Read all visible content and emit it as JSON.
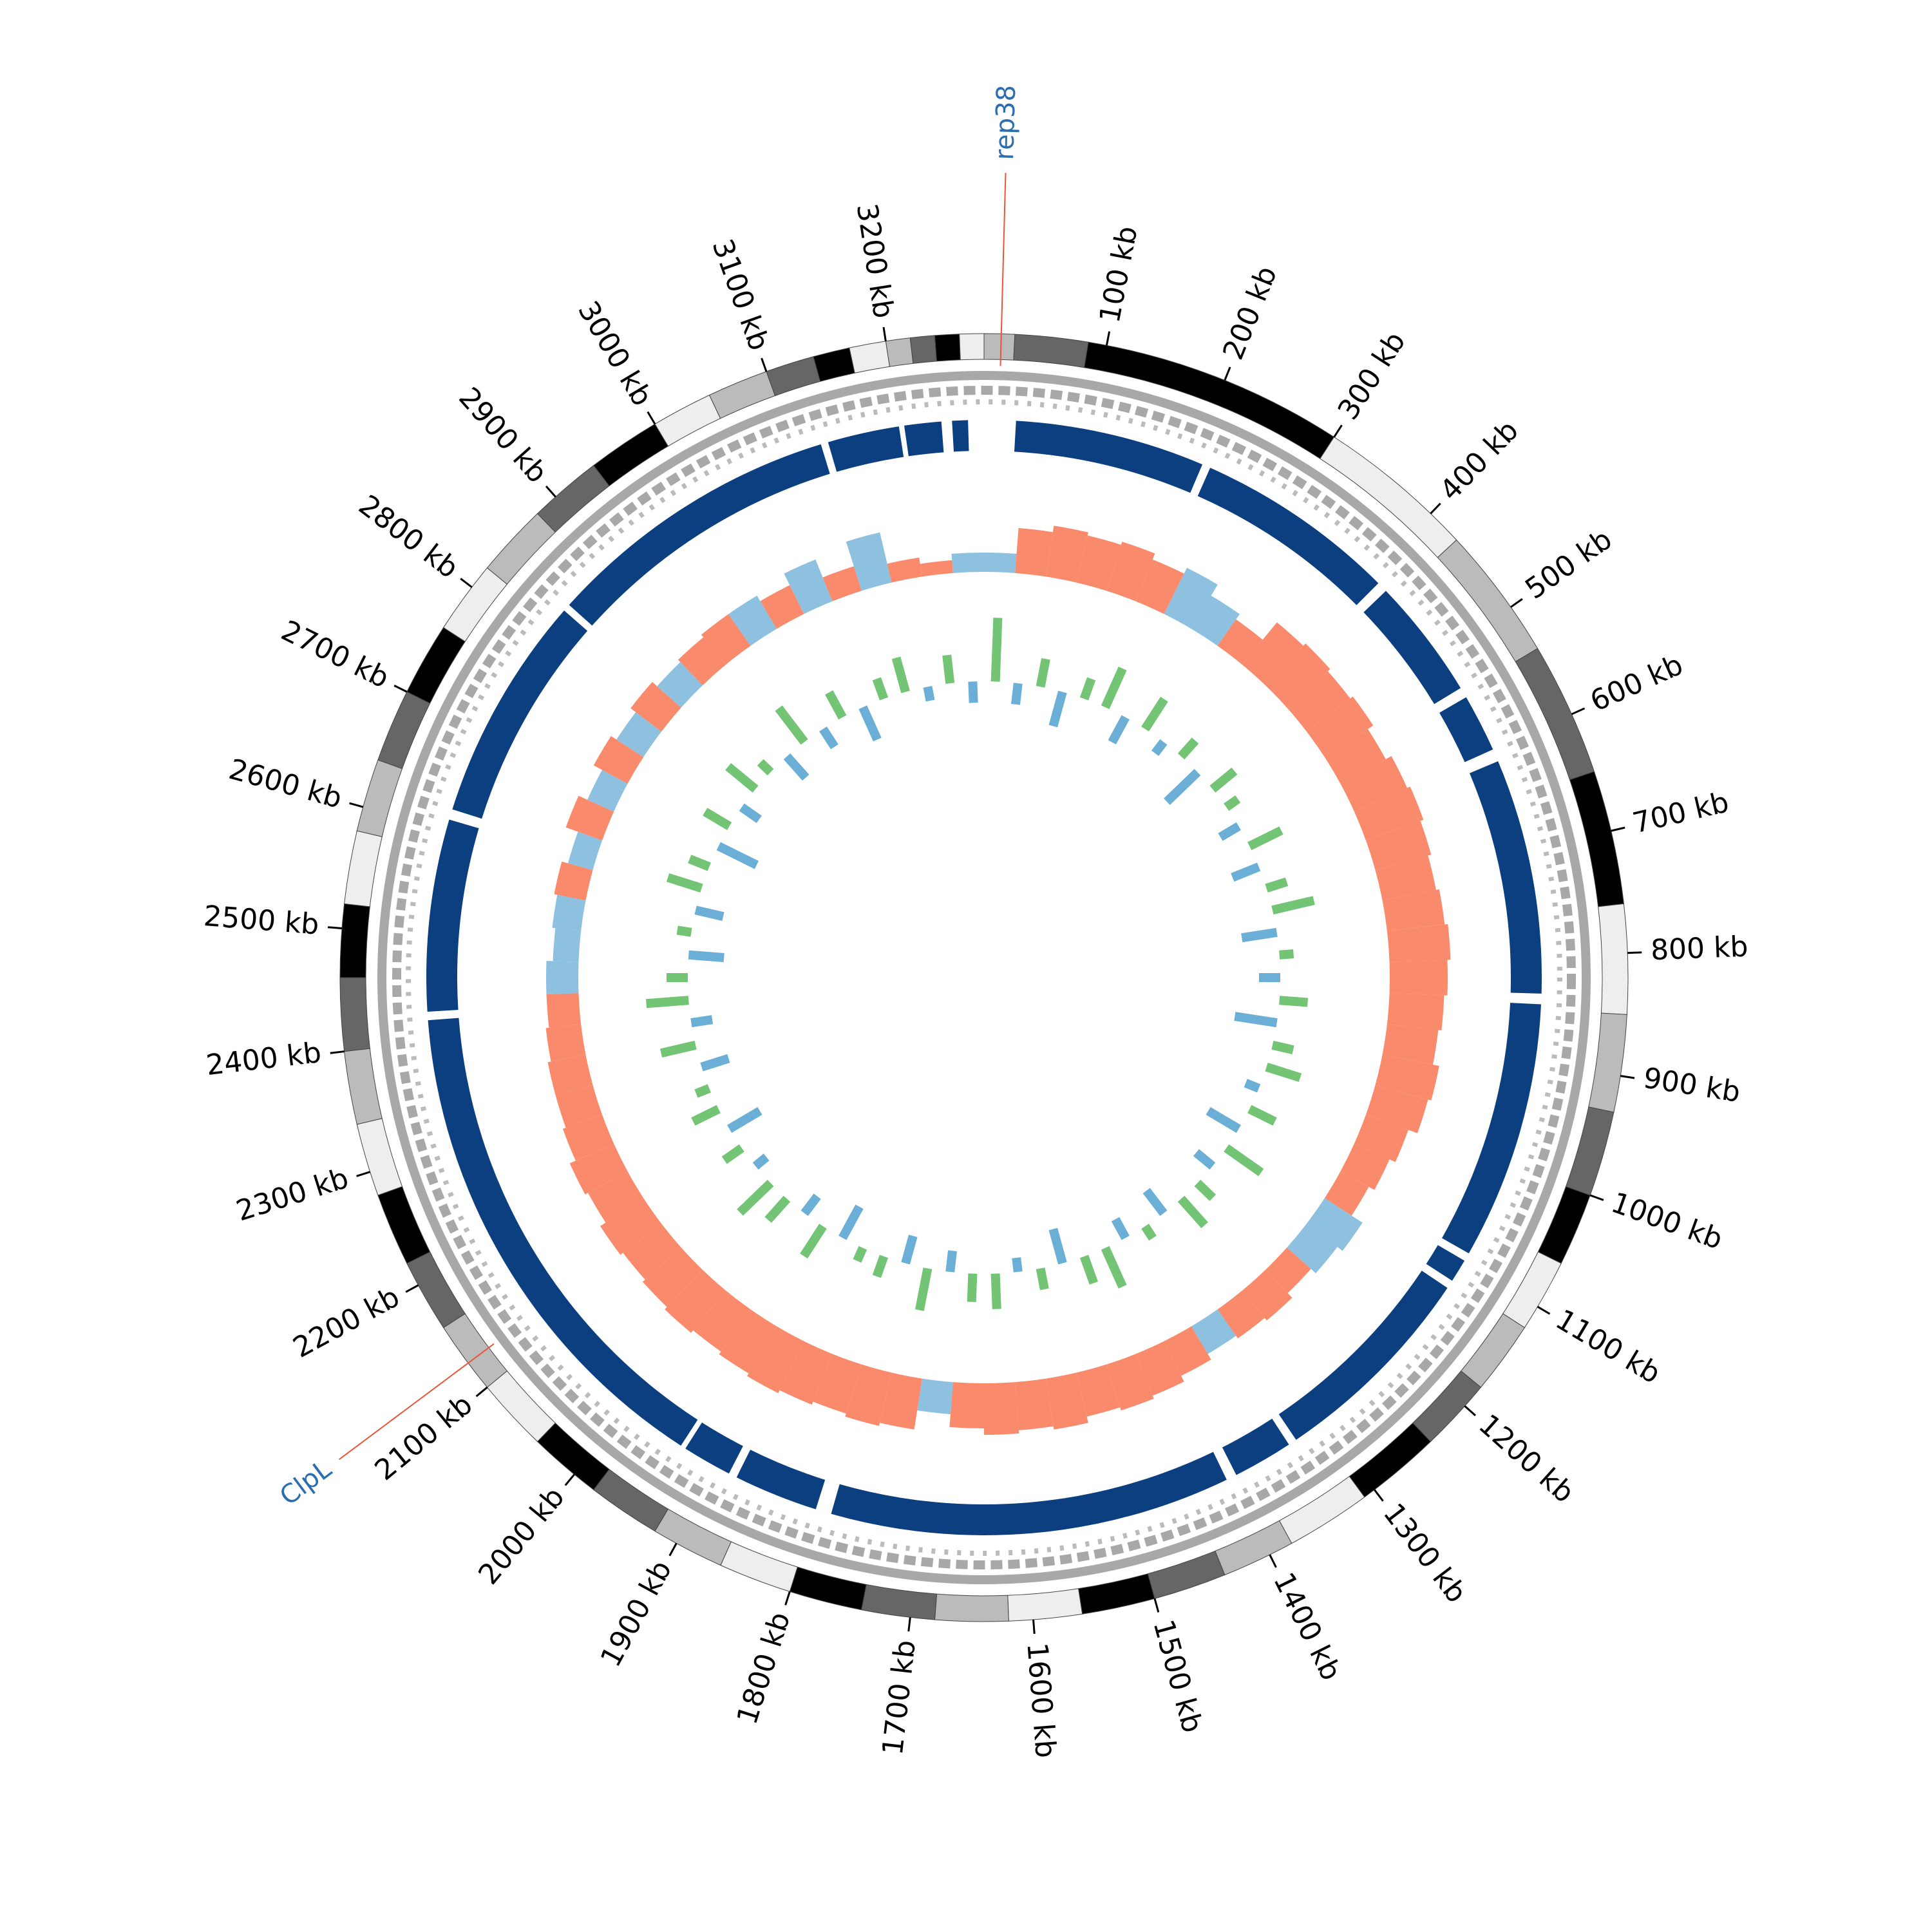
{
  "chart_data": {
    "type": "circos",
    "xlim": [
      0,
      3280
    ],
    "xticks": [
      {
        "value": 100,
        "label": "100 kb"
      },
      {
        "value": 200,
        "label": "200 kb"
      },
      {
        "value": 300,
        "label": "300 kb"
      },
      {
        "value": 400,
        "label": "400 kb"
      },
      {
        "value": 500,
        "label": "500 kb"
      },
      {
        "value": 600,
        "label": "600 kb"
      },
      {
        "value": 700,
        "label": "700 kb"
      },
      {
        "value": 800,
        "label": "800 kb"
      },
      {
        "value": 900,
        "label": "900 kb"
      },
      {
        "value": 1000,
        "label": "1000 kb"
      },
      {
        "value": 1100,
        "label": "1100 kb"
      },
      {
        "value": 1200,
        "label": "1200 kb"
      },
      {
        "value": 1300,
        "label": "1300 kb"
      },
      {
        "value": 1400,
        "label": "1400 kb"
      },
      {
        "value": 1500,
        "label": "1500 kb"
      },
      {
        "value": 1600,
        "label": "1600 kb"
      },
      {
        "value": 1700,
        "label": "1700 kb"
      },
      {
        "value": 1800,
        "label": "1800 kb"
      },
      {
        "value": 1900,
        "label": "1900 kb"
      },
      {
        "value": 2000,
        "label": "2000 kb"
      },
      {
        "value": 2100,
        "label": "2100 kb"
      },
      {
        "value": 2200,
        "label": "2200 kb"
      },
      {
        "value": 2300,
        "label": "2300 kb"
      },
      {
        "value": 2400,
        "label": "2400 kb"
      },
      {
        "value": 2500,
        "label": "2500 kb"
      },
      {
        "value": 2600,
        "label": "2600 kb"
      },
      {
        "value": 2700,
        "label": "2700 kb"
      },
      {
        "value": 2800,
        "label": "2800 kb"
      },
      {
        "value": 2900,
        "label": "2900 kb"
      },
      {
        "value": 3000,
        "label": "3000 kb"
      },
      {
        "value": 3100,
        "label": "3100 kb"
      },
      {
        "value": 3200,
        "label": "3200 kb"
      }
    ],
    "annotations": [
      {
        "label": "rep38",
        "position": 14,
        "color": "#2a6db0",
        "line_color": "#e8553a"
      },
      {
        "label": "ClpL",
        "position": 2125,
        "color": "#2a6db0",
        "line_color": "#e8553a"
      }
    ],
    "band_edges": [
      0,
      25,
      85,
      300,
      430,
      540,
      650,
      760,
      850,
      930,
      1000,
      1060,
      1120,
      1180,
      1240,
      1310,
      1380,
      1440,
      1500,
      1560,
      1620,
      1680,
      1740,
      1800,
      1860,
      1920,
      1980,
      2040,
      2100,
      2160,
      2220,
      2280,
      2340,
      2400,
      2460,
      2520,
      2580,
      2640,
      2700,
      2760,
      2820,
      2880,
      2940,
      3000,
      3050,
      3100,
      3140,
      3170,
      3200,
      3220,
      3240,
      3260,
      3280
    ],
    "band_colors": [
      "#bbbbbb",
      "#666666",
      "#000000",
      "#eeeeee"
    ],
    "blocks": [
      [
        30,
        210
      ],
      [
        218,
        410
      ],
      [
        420,
        535
      ],
      [
        545,
        600
      ],
      [
        612,
        835
      ],
      [
        845,
        1090
      ],
      [
        1098,
        1120
      ],
      [
        1128,
        1330
      ],
      [
        1338,
        1395
      ],
      [
        1405,
        1785
      ],
      [
        1800,
        1880
      ],
      [
        1888,
        1935
      ],
      [
        1940,
        2420
      ],
      [
        2428,
        2610
      ],
      [
        2620,
        2835
      ],
      [
        2842,
        3125
      ],
      [
        3132,
        3200
      ],
      [
        3205,
        3240
      ],
      [
        3250,
        3265
      ]
    ],
    "block_color": "#0b3f80",
    "skew": {
      "bin_size": 40,
      "ylim": [
        -1,
        1
      ],
      "pos_color": "#f98a6b",
      "neg_color": "#8ec1e0",
      "values": [
        -0.3,
        0.7,
        0.8,
        0.75,
        0.8,
        0.7,
        -0.8,
        -0.6,
        0.5,
        0.85,
        0.9,
        0.85,
        0.9,
        0.8,
        0.9,
        0.95,
        0.9,
        0.85,
        0.9,
        0.95,
        0.9,
        0.85,
        0.8,
        0.9,
        0.85,
        0.7,
        0.6,
        0.5,
        -0.7,
        -0.6,
        0.5,
        0.6,
        0.55,
        -0.5,
        0.6,
        0.7,
        0.75,
        0.7,
        0.8,
        0.75,
        0.8,
        0.7,
        -0.5,
        0.8,
        0.85,
        0.8,
        0.85,
        0.9,
        0.85,
        0.8,
        0.85,
        0.8,
        0.75,
        0.8,
        0.7,
        0.75,
        0.65,
        0.6,
        0.6,
        0.55,
        0.5,
        -0.5,
        -0.4,
        -0.45,
        0.5,
        -0.4,
        0.6,
        -0.45,
        0.6,
        -0.5,
        0.6,
        -0.5,
        0.55,
        0.6,
        -0.6,
        0.5,
        -0.7,
        0.4,
        -0.8,
        0.3,
        0.2,
        -0.3
      ]
    },
    "gc": {
      "bin_size": 40,
      "ylim": [
        -1,
        1
      ],
      "pos_color": "#74c476",
      "neg_color": "#6baed6",
      "values": [
        0.9,
        -0.3,
        0.4,
        -0.5,
        0.3,
        0.6,
        -0.4,
        0.5,
        -0.2,
        0.3,
        -0.6,
        0.4,
        0.2,
        -0.3,
        0.5,
        -0.4,
        0.3,
        0.6,
        -0.5,
        0.2,
        -0.3,
        0.4,
        -0.6,
        0.3,
        0.5,
        -0.2,
        0.4,
        -0.5,
        0.6,
        -0.3,
        0.3,
        0.5,
        -0.4,
        0.2,
        -0.3,
        0.6,
        0.4,
        -0.5,
        0.3,
        -0.2,
        0.5,
        0.4,
        -0.3,
        0.6,
        -0.4,
        0.3,
        0.2,
        -0.5,
        0.5,
        -0.3,
        0.4,
        0.6,
        -0.2,
        0.3,
        -0.5,
        0.4,
        0.2,
        -0.4,
        0.5,
        -0.3,
        0.6,
        0.3,
        -0.5,
        0.2,
        -0.4,
        0.5,
        0.3,
        -0.6,
        0.4,
        -0.3,
        0.5,
        0.2,
        -0.4,
        0.6,
        -0.3,
        0.4,
        -0.5,
        0.3,
        0.5,
        -0.2,
        0.4,
        -0.3
      ]
    }
  }
}
